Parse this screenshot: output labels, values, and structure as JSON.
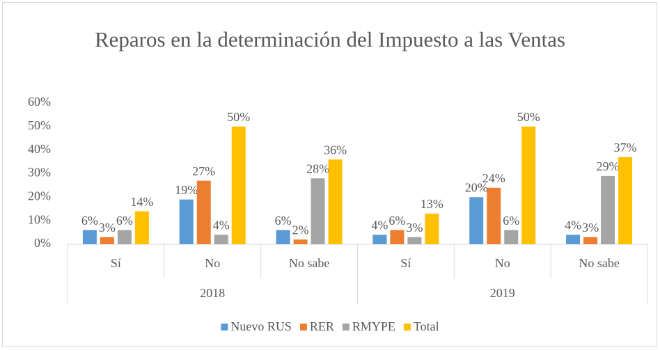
{
  "chart_data": {
    "type": "bar",
    "title": "Reparos en la determinación del Impuesto a las Ventas",
    "categories": [
      "Sí",
      "No",
      "No sabe",
      "Sí",
      "No",
      "No sabe"
    ],
    "groups": [
      "2018",
      "2019"
    ],
    "series": [
      {
        "name": "Nuevo RUS",
        "color": "#5b9bd5",
        "values": [
          6,
          19,
          6,
          4,
          20,
          4
        ],
        "value_labels": [
          "6%",
          "19%",
          "6%",
          "4%",
          "20%",
          "4%"
        ]
      },
      {
        "name": "RER",
        "color": "#ed7d31",
        "values": [
          3,
          27,
          2,
          6,
          24,
          3
        ],
        "value_labels": [
          "3%",
          "27%",
          "2%",
          "6%",
          "24%",
          "3%"
        ]
      },
      {
        "name": "RMYPE",
        "color": "#a5a5a5",
        "values": [
          6,
          4,
          28,
          3,
          6,
          29
        ],
        "value_labels": [
          "6%",
          "4%",
          "28%",
          "3%",
          "6%",
          "29%"
        ]
      },
      {
        "name": "Total",
        "color": "#ffc000",
        "values": [
          14,
          50,
          36,
          13,
          50,
          37
        ],
        "value_labels": [
          "14%",
          "50%",
          "36%",
          "13%",
          "50%",
          "37%"
        ]
      }
    ],
    "ylim": [
      0,
      60
    ],
    "yticks": [
      {
        "value": 0,
        "label": "0%"
      },
      {
        "value": 10,
        "label": "10%"
      },
      {
        "value": 20,
        "label": "20%"
      },
      {
        "value": 30,
        "label": "30%"
      },
      {
        "value": 40,
        "label": "40%"
      },
      {
        "value": 50,
        "label": "50%"
      },
      {
        "value": 60,
        "label": "60%"
      }
    ],
    "grid": false,
    "legend": "bottom"
  }
}
